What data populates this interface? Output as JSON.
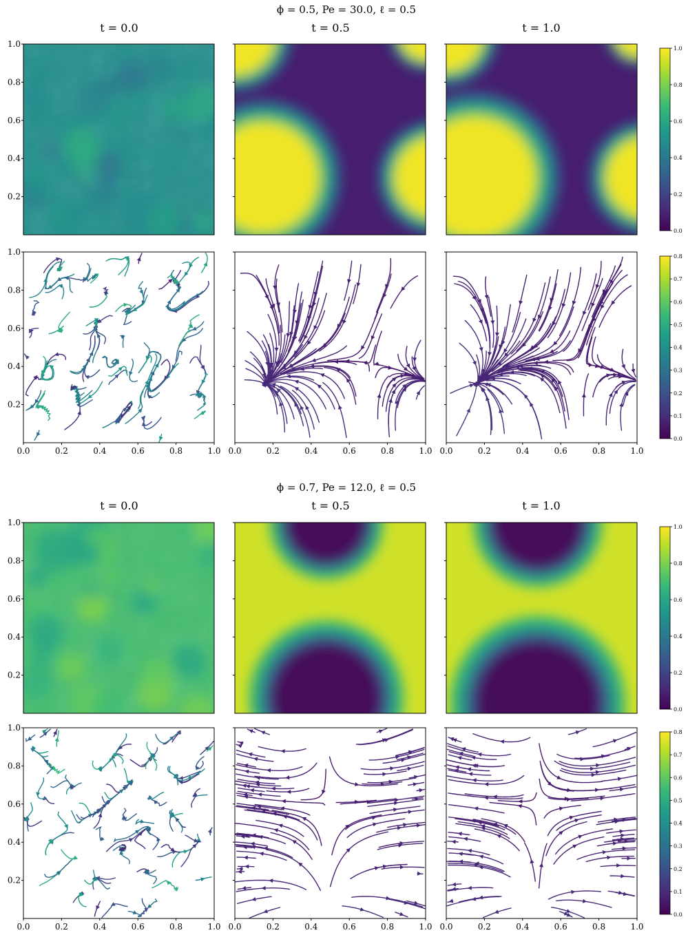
{
  "colors": {
    "viridis": [
      "#440154",
      "#482878",
      "#3e4989",
      "#31688e",
      "#26828e",
      "#1f9e89",
      "#35b779",
      "#6ece58",
      "#b5de2b",
      "#fde725"
    ]
  },
  "chart_data": [
    {
      "type": "heatmap",
      "panel": "density",
      "title": "ϕ = 0.5, Pe = 30.0, ℓ = 0.5",
      "times": [
        "t = 0.0",
        "t = 0.5",
        "t = 1.0"
      ],
      "xlim": [
        0.0,
        1.0
      ],
      "ylim": [
        0.0,
        1.0
      ],
      "xticks": [],
      "yticks": [
        "0.2",
        "0.4",
        "0.6",
        "0.8",
        "1.0"
      ],
      "colorbar": {
        "range": [
          0.0,
          1.0
        ],
        "ticks": [
          "0.0",
          "0.2",
          "0.4",
          "0.6",
          "0.8",
          "1.0"
        ]
      },
      "fields": [
        {
          "t": 0.0,
          "mean": 0.5,
          "pattern": "noise"
        },
        {
          "t": 0.5,
          "dense_blobs": [
            {
              "x": 0.15,
              "y": 0.3,
              "r": 0.3
            },
            {
              "x": 1.05,
              "y": 0.3,
              "r": 0.22
            },
            {
              "x": 0.0,
              "y": 1.05,
              "r": 0.22
            },
            {
              "x": 1.0,
              "y": 1.05,
              "r": 0.14
            }
          ]
        },
        {
          "t": 1.0,
          "dense_blobs": [
            {
              "x": 0.15,
              "y": 0.3,
              "r": 0.33
            },
            {
              "x": 1.05,
              "y": 0.3,
              "r": 0.22
            },
            {
              "x": 0.0,
              "y": 1.05,
              "r": 0.2
            },
            {
              "x": 1.0,
              "y": 1.05,
              "r": 0.12
            }
          ]
        }
      ]
    },
    {
      "type": "streamplot",
      "panel": "velocity",
      "times": [
        "t = 0.0",
        "t = 0.5",
        "t = 1.0"
      ],
      "xlim": [
        0.0,
        1.0
      ],
      "ylim": [
        0.0,
        1.0
      ],
      "xticks": [
        "0.0",
        "0.2",
        "0.4",
        "0.6",
        "0.8",
        "1.0"
      ],
      "yticks": [
        "0.2",
        "0.4",
        "0.6",
        "0.8",
        "1.0"
      ],
      "colorbar": {
        "range": [
          0.0,
          0.8
        ],
        "ticks": [
          "0.0",
          "0.1",
          "0.2",
          "0.3",
          "0.4",
          "0.5",
          "0.6",
          "0.7",
          "0.8"
        ]
      }
    },
    {
      "type": "heatmap",
      "panel": "density",
      "title": "ϕ = 0.7, Pe = 12.0, ℓ = 0.5",
      "times": [
        "t = 0.0",
        "t = 0.5",
        "t = 1.0"
      ],
      "xlim": [
        0.0,
        1.0
      ],
      "ylim": [
        0.0,
        1.0
      ],
      "xticks": [],
      "yticks": [
        "0.2",
        "0.4",
        "0.6",
        "0.8",
        "1.0"
      ],
      "colorbar": {
        "range": [
          0.0,
          1.0
        ],
        "ticks": [
          "0.0",
          "0.2",
          "0.4",
          "0.6",
          "0.8",
          "1.0"
        ]
      },
      "fields": [
        {
          "t": 0.0,
          "mean": 0.7,
          "pattern": "noise"
        },
        {
          "t": 0.5,
          "dilute_blobs": [
            {
              "x": 0.48,
              "y": 0.08,
              "r": 0.3
            },
            {
              "x": 0.48,
              "y": 1.0,
              "r": 0.22
            }
          ]
        },
        {
          "t": 1.0,
          "dilute_blobs": [
            {
              "x": 0.48,
              "y": 0.05,
              "r": 0.34
            },
            {
              "x": 0.48,
              "y": 1.0,
              "r": 0.25
            }
          ]
        }
      ]
    },
    {
      "type": "streamplot",
      "panel": "velocity",
      "times": [
        "t = 0.0",
        "t = 0.5",
        "t = 1.0"
      ],
      "xlim": [
        0.0,
        1.0
      ],
      "ylim": [
        0.0,
        1.0
      ],
      "xticks": [
        "0.0",
        "0.2",
        "0.4",
        "0.6",
        "0.8",
        "1.0"
      ],
      "yticks": [
        "0.2",
        "0.4",
        "0.6",
        "0.8",
        "1.0"
      ],
      "colorbar": {
        "range": [
          0.0,
          0.8
        ],
        "ticks": [
          "0.0",
          "0.1",
          "0.2",
          "0.3",
          "0.4",
          "0.5",
          "0.6",
          "0.7",
          "0.8"
        ]
      }
    }
  ]
}
